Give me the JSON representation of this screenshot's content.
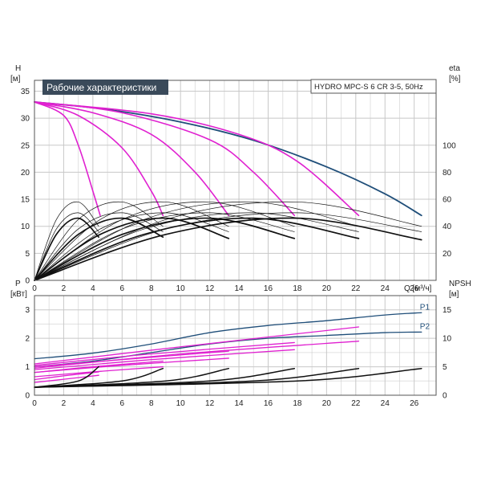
{
  "colors": {
    "blue": "#1f4e79",
    "magenta": "#e020d0",
    "black": "#111111",
    "title_bg": "#3a4a5a",
    "title_fg": "#ffffff",
    "grid": "#c8c8c8"
  },
  "chart_data": [
    {
      "id": "performance",
      "type": "line",
      "title": "Рабочие характеристики",
      "model": "HYDRO MPC-S 6 CR 3-5, 50Hz",
      "xlabel": "Q [м³/ч]",
      "ylabel": {
        "name": "H",
        "unit": "[м]"
      },
      "y2label": {
        "name": "eta",
        "unit": "[%]"
      },
      "xlim": [
        0,
        27.5
      ],
      "ylim": [
        0,
        37
      ],
      "y2lim": [
        0,
        148
      ],
      "xticks": [
        0,
        2,
        4,
        6,
        8,
        10,
        12,
        14,
        16,
        18,
        20,
        22,
        24,
        26
      ],
      "yticks": [
        0,
        5,
        10,
        15,
        20,
        25,
        30,
        35
      ],
      "y2ticks": [
        20,
        40,
        60,
        80,
        100
      ],
      "grid": true,
      "series": [
        {
          "kind": "H",
          "color": "blue",
          "axis": "left",
          "x": [
            0,
            5,
            10,
            15,
            20,
            24,
            26.5
          ],
          "y": [
            33,
            31.6,
            29.3,
            25.9,
            21.0,
            16.0,
            12.0
          ]
        },
        {
          "kind": "H",
          "color": "magenta",
          "axis": "left",
          "x": [
            0,
            2,
            3,
            4,
            4.5
          ],
          "y": [
            33,
            30.5,
            25.0,
            16.5,
            12.0
          ]
        },
        {
          "kind": "H",
          "color": "magenta",
          "axis": "left",
          "x": [
            0,
            3,
            6,
            8,
            8.8
          ],
          "y": [
            33,
            30.5,
            24.5,
            16.5,
            12.0
          ]
        },
        {
          "kind": "H",
          "color": "magenta",
          "axis": "left",
          "x": [
            0,
            4,
            8,
            11,
            13.3
          ],
          "y": [
            33,
            31.0,
            27.0,
            20.0,
            12.0
          ]
        },
        {
          "kind": "H",
          "color": "magenta",
          "axis": "left",
          "x": [
            0,
            6,
            12,
            15,
            17.8
          ],
          "y": [
            33,
            31.0,
            26.0,
            20.0,
            12.0
          ]
        },
        {
          "kind": "H",
          "color": "magenta",
          "axis": "left",
          "x": [
            0,
            8,
            14,
            18,
            22.2
          ],
          "y": [
            33,
            30.8,
            27.0,
            22.0,
            12.0
          ]
        },
        {
          "kind": "eta",
          "color": "black",
          "weight": "bold",
          "axis": "right",
          "x": [
            0,
            1.5,
            3,
            4.4
          ],
          "y": [
            0,
            34,
            46,
            32
          ]
        },
        {
          "kind": "eta",
          "color": "black",
          "weight": "bold",
          "axis": "right",
          "x": [
            0,
            3,
            6,
            8.8
          ],
          "y": [
            0,
            34,
            46,
            32
          ]
        },
        {
          "kind": "eta",
          "color": "black",
          "weight": "bold",
          "axis": "right",
          "x": [
            0,
            4.5,
            9,
            13.3
          ],
          "y": [
            0,
            34,
            46,
            31
          ]
        },
        {
          "kind": "eta",
          "color": "black",
          "weight": "bold",
          "axis": "right",
          "x": [
            0,
            6,
            12,
            17.8
          ],
          "y": [
            0,
            34,
            46,
            31
          ]
        },
        {
          "kind": "eta",
          "color": "black",
          "weight": "bold",
          "axis": "right",
          "x": [
            0,
            7.5,
            15,
            22.2
          ],
          "y": [
            0,
            34,
            46,
            31
          ]
        },
        {
          "kind": "eta",
          "color": "black",
          "weight": "bold",
          "axis": "right",
          "x": [
            0,
            9,
            18,
            26.5
          ],
          "y": [
            0,
            34,
            46,
            30
          ]
        },
        {
          "kind": "eta",
          "color": "black",
          "weight": "thin",
          "axis": "right",
          "x": [
            0,
            1.5,
            3,
            4.4
          ],
          "y": [
            0,
            45,
            58,
            40
          ]
        },
        {
          "kind": "eta",
          "color": "black",
          "weight": "thin",
          "axis": "right",
          "x": [
            0,
            3,
            6,
            8.8
          ],
          "y": [
            0,
            45,
            58,
            40
          ]
        },
        {
          "kind": "eta",
          "color": "black",
          "weight": "thin",
          "axis": "right",
          "x": [
            0,
            4.5,
            9,
            13.3
          ],
          "y": [
            0,
            45,
            58,
            40
          ]
        },
        {
          "kind": "eta",
          "color": "black",
          "weight": "thin",
          "axis": "right",
          "x": [
            0,
            6,
            12,
            17.8
          ],
          "y": [
            0,
            45,
            58,
            40
          ]
        },
        {
          "kind": "eta",
          "color": "black",
          "weight": "thin",
          "axis": "right",
          "x": [
            0,
            7.5,
            15,
            22.2
          ],
          "y": [
            0,
            45,
            58,
            40
          ]
        },
        {
          "kind": "eta",
          "color": "black",
          "weight": "thin",
          "axis": "right",
          "x": [
            0,
            9,
            18,
            26.5
          ],
          "y": [
            0,
            45,
            58,
            40
          ]
        },
        {
          "kind": "eta",
          "color": "black",
          "weight": "thin",
          "axis": "right",
          "x": [
            0,
            1.5,
            3,
            4.4
          ],
          "y": [
            0,
            38,
            50,
            36
          ]
        },
        {
          "kind": "eta",
          "color": "black",
          "weight": "thin",
          "axis": "right",
          "x": [
            0,
            3,
            6,
            8.8
          ],
          "y": [
            0,
            38,
            50,
            36
          ]
        },
        {
          "kind": "eta",
          "color": "black",
          "weight": "thin",
          "axis": "right",
          "x": [
            0,
            4.5,
            9,
            13.3
          ],
          "y": [
            0,
            38,
            50,
            36
          ]
        },
        {
          "kind": "eta",
          "color": "black",
          "weight": "thin",
          "axis": "right",
          "x": [
            0,
            6,
            12,
            17.8
          ],
          "y": [
            0,
            38,
            50,
            36
          ]
        },
        {
          "kind": "eta",
          "color": "black",
          "weight": "thin",
          "axis": "right",
          "x": [
            0,
            7.5,
            15,
            22.2
          ],
          "y": [
            0,
            38,
            50,
            36
          ]
        },
        {
          "kind": "eta",
          "color": "black",
          "weight": "thin",
          "axis": "right",
          "x": [
            0,
            9,
            18,
            26.5
          ],
          "y": [
            0,
            38,
            50,
            36
          ]
        }
      ]
    },
    {
      "id": "power-npsh",
      "type": "line",
      "xlabel": "",
      "ylabel": {
        "name": "P",
        "unit": "[кВт]"
      },
      "y2label": {
        "name": "NPSH",
        "unit": "[м]"
      },
      "xlim": [
        0,
        27.5
      ],
      "ylim": [
        0,
        3.5
      ],
      "y2lim": [
        0,
        17.5
      ],
      "xticks": [
        0,
        2,
        4,
        6,
        8,
        10,
        12,
        14,
        16,
        18,
        20,
        22,
        24,
        26
      ],
      "yticks": [
        0,
        1,
        2,
        3
      ],
      "y2ticks": [
        0,
        5,
        10,
        15
      ],
      "grid": true,
      "labels": [
        "P1",
        "P2"
      ],
      "series": [
        {
          "kind": "P1",
          "label": "P1",
          "color": "blue",
          "axis": "left",
          "x": [
            0,
            4,
            8,
            12,
            16,
            20,
            24,
            26.5
          ],
          "y": [
            1.28,
            1.48,
            1.8,
            2.2,
            2.45,
            2.62,
            2.82,
            2.9
          ]
        },
        {
          "kind": "P2",
          "label": "P2",
          "color": "blue",
          "axis": "left",
          "x": [
            0,
            4,
            8,
            12,
            16,
            20,
            24,
            26.5
          ],
          "y": [
            1.0,
            1.2,
            1.5,
            1.8,
            2.0,
            2.1,
            2.2,
            2.22
          ]
        },
        {
          "kind": "P",
          "color": "magenta",
          "axis": "left",
          "x": [
            0,
            2,
            4.4
          ],
          "y": [
            0.55,
            0.68,
            0.82
          ]
        },
        {
          "kind": "P",
          "color": "magenta",
          "axis": "left",
          "x": [
            0,
            4,
            8.8
          ],
          "y": [
            0.8,
            1.0,
            1.2
          ]
        },
        {
          "kind": "P",
          "color": "magenta",
          "axis": "left",
          "x": [
            0,
            6,
            13.3
          ],
          "y": [
            1.0,
            1.25,
            1.55
          ]
        },
        {
          "kind": "P",
          "color": "magenta",
          "axis": "left",
          "x": [
            0,
            8,
            17.8
          ],
          "y": [
            1.05,
            1.45,
            1.85
          ]
        },
        {
          "kind": "P",
          "color": "magenta",
          "axis": "left",
          "x": [
            0,
            10,
            22.2
          ],
          "y": [
            1.1,
            1.7,
            2.4
          ]
        },
        {
          "kind": "P",
          "color": "magenta",
          "axis": "left",
          "x": [
            0,
            2,
            4.4
          ],
          "y": [
            0.45,
            0.56,
            0.7
          ]
        },
        {
          "kind": "P",
          "color": "magenta",
          "axis": "left",
          "x": [
            0,
            4,
            8.8
          ],
          "y": [
            0.65,
            0.82,
            1.0
          ]
        },
        {
          "kind": "P",
          "color": "magenta",
          "axis": "left",
          "x": [
            0,
            6,
            13.3
          ],
          "y": [
            0.8,
            1.05,
            1.3
          ]
        },
        {
          "kind": "P",
          "color": "magenta",
          "axis": "left",
          "x": [
            0,
            8,
            17.8
          ],
          "y": [
            0.9,
            1.25,
            1.6
          ]
        },
        {
          "kind": "P",
          "color": "magenta",
          "axis": "left",
          "x": [
            0,
            10,
            22.2
          ],
          "y": [
            0.95,
            1.45,
            1.9
          ]
        },
        {
          "kind": "NPSH",
          "color": "black",
          "axis": "right",
          "x": [
            0,
            3,
            4.4
          ],
          "y": [
            1.4,
            2.5,
            5.0
          ]
        },
        {
          "kind": "NPSH",
          "color": "black",
          "axis": "right",
          "x": [
            0,
            6,
            8.8
          ],
          "y": [
            1.4,
            2.5,
            4.7
          ]
        },
        {
          "kind": "NPSH",
          "color": "black",
          "axis": "right",
          "x": [
            0,
            9,
            13.3
          ],
          "y": [
            1.4,
            2.5,
            4.7
          ]
        },
        {
          "kind": "NPSH",
          "color": "black",
          "axis": "right",
          "x": [
            0,
            12,
            17.8
          ],
          "y": [
            1.4,
            2.5,
            4.7
          ]
        },
        {
          "kind": "NPSH",
          "color": "black",
          "axis": "right",
          "x": [
            0,
            15,
            22.2
          ],
          "y": [
            1.4,
            2.5,
            4.7
          ]
        },
        {
          "kind": "NPSH",
          "color": "black",
          "axis": "right",
          "x": [
            0,
            18,
            26.5
          ],
          "y": [
            1.4,
            2.5,
            4.7
          ]
        }
      ]
    }
  ]
}
